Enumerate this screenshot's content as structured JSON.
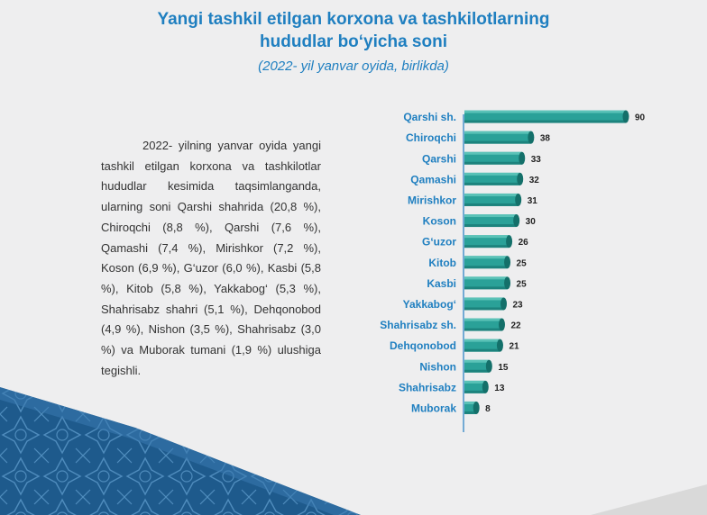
{
  "header": {
    "title_line1": "Yangi tashkil etilgan korxona va tashkilotlarning",
    "title_line2": "hududlar bo‘yicha soni",
    "subtitle": "(2022- yil yanvar oyida, birlikda)"
  },
  "paragraph": "2022- yilning yanvar oyida yangi tashkil etilgan korxona va tashkilotlar hududlar kesimida taqsimlanganda, ularning soni Qarshi shahrida (20,8 %), Chiroqchi (8,8 %), Qarshi (7,6 %), Qamashi (7,4 %), Mirishkor (7,2 %), Koson (6,9 %), G‘uzor (6,0 %), Kasbi (5,8 %), Kitob (5,8 %), Yakkabog‘ (5,3 %), Shahrisabz shahri (5,1 %), Dehqonobod (4,9 %), Nishon (3,5 %), Shahrisabz (3,0 %) va Muborak tumani (1,9 %) ulushiga tegishli.",
  "colors": {
    "accent": "#1f7fc0",
    "bar": "#2aa198",
    "bar_dark": "#14706a",
    "pattern": "#1d5c8f"
  },
  "chart_data": {
    "type": "bar",
    "orientation": "horizontal",
    "title": "",
    "xlabel": "",
    "ylabel": "",
    "xlim": [
      0,
      90
    ],
    "grid": false,
    "legend": "none",
    "categories": [
      "Qarshi sh.",
      "Chiroqchi",
      "Qarshi",
      "Qamashi",
      "Mirishkor",
      "Koson",
      "G‘uzor",
      "Kitob",
      "Kasbi",
      "Yakkabog‘",
      "Shahrisabz sh.",
      "Dehqonobod",
      "Nishon",
      "Shahrisabz",
      "Muborak"
    ],
    "values": [
      90,
      38,
      33,
      32,
      31,
      30,
      26,
      25,
      25,
      23,
      22,
      21,
      15,
      13,
      8
    ]
  }
}
